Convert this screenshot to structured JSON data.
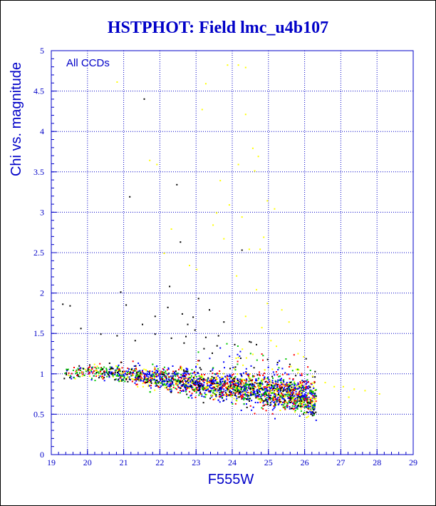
{
  "chart_data": {
    "type": "scatter",
    "title": "HSTPHOT: Field lmc_u4b107",
    "xlabel": "F555W",
    "ylabel": "Chi vs. magnitude",
    "annotation": "All CCDs",
    "xlim": [
      19,
      29
    ],
    "ylim": [
      0,
      5
    ],
    "xticks": [
      19,
      20,
      21,
      22,
      23,
      24,
      25,
      26,
      27,
      28,
      29
    ],
    "yticks": [
      0,
      0.5,
      1,
      1.5,
      2,
      2.5,
      3,
      3.5,
      4,
      4.5,
      5
    ],
    "ytick_labels": [
      "0",
      "0.5",
      "1",
      "1.5",
      "2",
      "2.5",
      "3",
      "3.5",
      "4",
      "4.5",
      "5"
    ],
    "grid": true,
    "colors": {
      "axis": "#0000c8",
      "grid": "#0000c8",
      "series_black": "#000000",
      "series_red": "#ff0000",
      "series_green": "#00c800",
      "series_blue": "#0000ff",
      "series_yellow": "#ffff00"
    },
    "series": [
      {
        "color": "#000000",
        "note": "sparse high-chi outliers",
        "points": [
          [
            21.55,
            4.41
          ],
          [
            21.15,
            3.2
          ],
          [
            22.45,
            3.35
          ],
          [
            22.55,
            2.64
          ],
          [
            19.3,
            1.87
          ],
          [
            19.5,
            1.85
          ],
          [
            19.8,
            1.57
          ],
          [
            20.35,
            1.5
          ],
          [
            20.9,
            2.02
          ],
          [
            21.05,
            1.86
          ],
          [
            21.5,
            1.62
          ],
          [
            21.85,
            1.72
          ],
          [
            22.2,
            1.83
          ],
          [
            22.25,
            2.09
          ],
          [
            22.6,
            1.75
          ],
          [
            22.75,
            1.62
          ],
          [
            22.9,
            1.71
          ],
          [
            23.05,
            1.94
          ],
          [
            23.35,
            1.8
          ],
          [
            23.75,
            1.65
          ],
          [
            24.25,
            2.54
          ],
          [
            23.2,
            1.32
          ],
          [
            22.65,
            1.39
          ],
          [
            22.3,
            1.45
          ],
          [
            21.3,
            1.42
          ],
          [
            20.8,
            1.48
          ],
          [
            24.5,
            1.4
          ],
          [
            23.6,
            1.48
          ],
          [
            22.95,
            1.55
          ],
          [
            21.85,
            1.5
          ],
          [
            24.65,
            1.37
          ],
          [
            23.25,
            1.46
          ],
          [
            22.7,
            1.47
          ],
          [
            24.05,
            1.37
          ]
        ]
      },
      {
        "color": "#ffff00",
        "note": "bright-outlier population",
        "points": [
          [
            20.8,
            4.62
          ],
          [
            23.25,
            4.6
          ],
          [
            23.85,
            4.83
          ],
          [
            24.15,
            4.83
          ],
          [
            24.35,
            4.8
          ],
          [
            23.15,
            4.28
          ],
          [
            24.35,
            4.22
          ],
          [
            24.55,
            3.8
          ],
          [
            24.7,
            3.7
          ],
          [
            24.6,
            3.52
          ],
          [
            24.95,
            3.15
          ],
          [
            25.15,
            3.05
          ],
          [
            23.9,
            3.1
          ],
          [
            23.55,
            3.0
          ],
          [
            24.25,
            2.95
          ],
          [
            23.75,
            2.68
          ],
          [
            24.45,
            2.55
          ],
          [
            24.85,
            2.7
          ],
          [
            22.3,
            2.8
          ],
          [
            22.1,
            2.5
          ],
          [
            23.0,
            2.3
          ],
          [
            24.1,
            2.22
          ],
          [
            24.65,
            2.05
          ],
          [
            24.95,
            1.88
          ],
          [
            25.35,
            1.8
          ],
          [
            24.35,
            1.72
          ],
          [
            25.55,
            1.65
          ],
          [
            25.85,
            1.42
          ],
          [
            25.95,
            1.22
          ],
          [
            26.55,
            0.9
          ],
          [
            26.8,
            0.85
          ],
          [
            27.05,
            0.85
          ],
          [
            27.35,
            0.82
          ],
          [
            27.65,
            0.8
          ],
          [
            28.05,
            0.76
          ],
          [
            21.7,
            3.65
          ],
          [
            21.9,
            3.6
          ],
          [
            23.45,
            2.85
          ],
          [
            22.8,
            2.35
          ],
          [
            25.2,
            1.35
          ],
          [
            25.6,
            1.1
          ],
          [
            25.8,
            1.02
          ],
          [
            26.2,
            0.98
          ],
          [
            27.2,
            0.72
          ],
          [
            24.8,
            1.58
          ],
          [
            25.05,
            1.42
          ],
          [
            24.55,
            1.25
          ],
          [
            24.75,
            2.55
          ],
          [
            24.15,
            3.6
          ],
          [
            23.65,
            3.4
          ]
        ]
      }
    ]
  }
}
